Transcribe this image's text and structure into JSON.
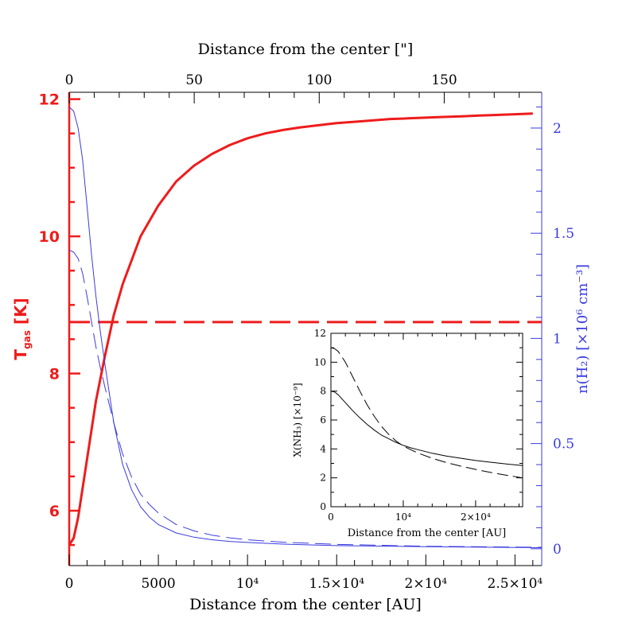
{
  "colors": {
    "red": "#ee1c1c",
    "blue": "#3a3ae0",
    "black": "#000000"
  },
  "chart_data": [
    {
      "type": "line",
      "xlabel": "Distance from the center [AU]",
      "x2label": "Distance from the center [\"]",
      "ylabel_left_main": "T",
      "ylabel_left_sub": "gas",
      "ylabel_left_unit": " [K]",
      "ylabel_right": "n(H₂) [×10⁶ cm⁻³]",
      "xlim": [
        0,
        26500
      ],
      "x2lim": [
        0,
        189
      ],
      "ylim_left": [
        5.2,
        12.1
      ],
      "ylim_right": [
        -0.08,
        2.17
      ],
      "xticks": [
        {
          "value": 0,
          "label": "0"
        },
        {
          "value": 5000,
          "label": "5000"
        },
        {
          "value": 10000,
          "label": "10⁴"
        },
        {
          "value": 15000,
          "label": "1.5×10⁴"
        },
        {
          "value": 20000,
          "label": "2×10⁴"
        },
        {
          "value": 25000,
          "label": "2.5×10⁴"
        }
      ],
      "x2ticks": [
        {
          "value": 0,
          "label": "0"
        },
        {
          "value": 50,
          "label": "50"
        },
        {
          "value": 100,
          "label": "100"
        },
        {
          "value": 150,
          "label": "150"
        }
      ],
      "yticks_left": [
        {
          "value": 6,
          "label": "6"
        },
        {
          "value": 8,
          "label": "8"
        },
        {
          "value": 10,
          "label": "10"
        },
        {
          "value": 12,
          "label": "12"
        }
      ],
      "yticks_right": [
        {
          "value": 0,
          "label": "0"
        },
        {
          "value": 0.5,
          "label": "0.5"
        },
        {
          "value": 1,
          "label": "1"
        },
        {
          "value": 1.5,
          "label": "1.5"
        },
        {
          "value": 2,
          "label": "2"
        }
      ],
      "series": [
        {
          "axis": "left",
          "color": "red",
          "style": "solid",
          "width": 3,
          "x": [
            0,
            250,
            500,
            1000,
            1500,
            2000,
            2500,
            3000,
            4000,
            5000,
            6000,
            7000,
            8000,
            9000,
            10000,
            11000,
            12000,
            13000,
            14000,
            15000,
            16000,
            17000,
            18000,
            19000,
            20000,
            21000,
            22000,
            23000,
            24000,
            25000,
            26000
          ],
          "y": [
            5.5,
            5.6,
            5.9,
            6.75,
            7.6,
            8.25,
            8.85,
            9.3,
            10.0,
            10.45,
            10.8,
            11.03,
            11.2,
            11.33,
            11.43,
            11.5,
            11.55,
            11.59,
            11.62,
            11.65,
            11.67,
            11.69,
            11.71,
            11.72,
            11.73,
            11.74,
            11.75,
            11.76,
            11.77,
            11.78,
            11.79
          ]
        },
        {
          "axis": "left",
          "color": "red",
          "style": "dashed",
          "width": 3,
          "x": [
            0,
            26500
          ],
          "y": [
            8.75,
            8.75
          ]
        },
        {
          "axis": "right",
          "color": "blue",
          "style": "solid",
          "width": 1,
          "x": [
            0,
            250,
            500,
            750,
            1000,
            1250,
            1500,
            1750,
            2000,
            2500,
            3000,
            3500,
            4000,
            4500,
            5000,
            6000,
            7000,
            8000,
            9000,
            10000,
            12000,
            15000,
            20000,
            26500
          ],
          "y": [
            2.1,
            2.08,
            2.0,
            1.85,
            1.63,
            1.4,
            1.2,
            1.03,
            0.88,
            0.6,
            0.4,
            0.28,
            0.2,
            0.15,
            0.115,
            0.075,
            0.055,
            0.043,
            0.035,
            0.03,
            0.022,
            0.015,
            0.01,
            0.005
          ]
        },
        {
          "axis": "right",
          "color": "blue",
          "style": "dashed",
          "width": 1,
          "x": [
            0,
            250,
            500,
            750,
            1000,
            1250,
            1500,
            1750,
            2000,
            2500,
            3000,
            3500,
            4000,
            4500,
            5000,
            6000,
            7000,
            8000,
            9000,
            10000,
            12000,
            15000,
            20000,
            26500
          ],
          "y": [
            1.42,
            1.41,
            1.38,
            1.31,
            1.2,
            1.08,
            0.96,
            0.86,
            0.77,
            0.6,
            0.45,
            0.34,
            0.26,
            0.21,
            0.17,
            0.115,
            0.085,
            0.065,
            0.052,
            0.043,
            0.031,
            0.021,
            0.012,
            0.007
          ]
        }
      ]
    },
    {
      "type": "line",
      "xlabel": "Distance from the center [AU]",
      "ylabel": "X(NH₃) [×10⁻⁹]",
      "xlim": [
        0,
        26500
      ],
      "ylim": [
        0,
        12
      ],
      "xticks": [
        {
          "value": 0,
          "label": "0"
        },
        {
          "value": 10000,
          "label": "10⁴"
        },
        {
          "value": 20000,
          "label": "2×10⁴"
        }
      ],
      "yticks": [
        {
          "value": 0,
          "label": "0"
        },
        {
          "value": 2,
          "label": "2"
        },
        {
          "value": 4,
          "label": "4"
        },
        {
          "value": 6,
          "label": "6"
        },
        {
          "value": 8,
          "label": "8"
        },
        {
          "value": 10,
          "label": "10"
        },
        {
          "value": 12,
          "label": "12"
        }
      ],
      "series": [
        {
          "color": "black",
          "style": "solid",
          "x": [
            0,
            500,
            1000,
            2000,
            3000,
            4000,
            5000,
            6000,
            7000,
            8000,
            9000,
            10000,
            11000,
            12000,
            14000,
            16000,
            18000,
            20000,
            22000,
            24000,
            26500
          ],
          "y": [
            8.0,
            7.95,
            7.75,
            7.2,
            6.65,
            6.15,
            5.7,
            5.3,
            4.95,
            4.7,
            4.45,
            4.25,
            4.08,
            3.95,
            3.7,
            3.5,
            3.35,
            3.2,
            3.08,
            2.97,
            2.85
          ]
        },
        {
          "color": "black",
          "style": "dashed",
          "x": [
            0,
            500,
            1000,
            2000,
            3000,
            4000,
            5000,
            6000,
            7000,
            8000,
            9000,
            10000,
            11000,
            12000,
            14000,
            16000,
            18000,
            20000,
            22000,
            24000,
            26500
          ],
          "y": [
            11.0,
            10.95,
            10.75,
            10.0,
            9.0,
            8.0,
            7.05,
            6.25,
            5.55,
            5.0,
            4.55,
            4.2,
            3.95,
            3.72,
            3.35,
            3.05,
            2.8,
            2.58,
            2.38,
            2.2,
            2.0
          ]
        }
      ]
    }
  ]
}
